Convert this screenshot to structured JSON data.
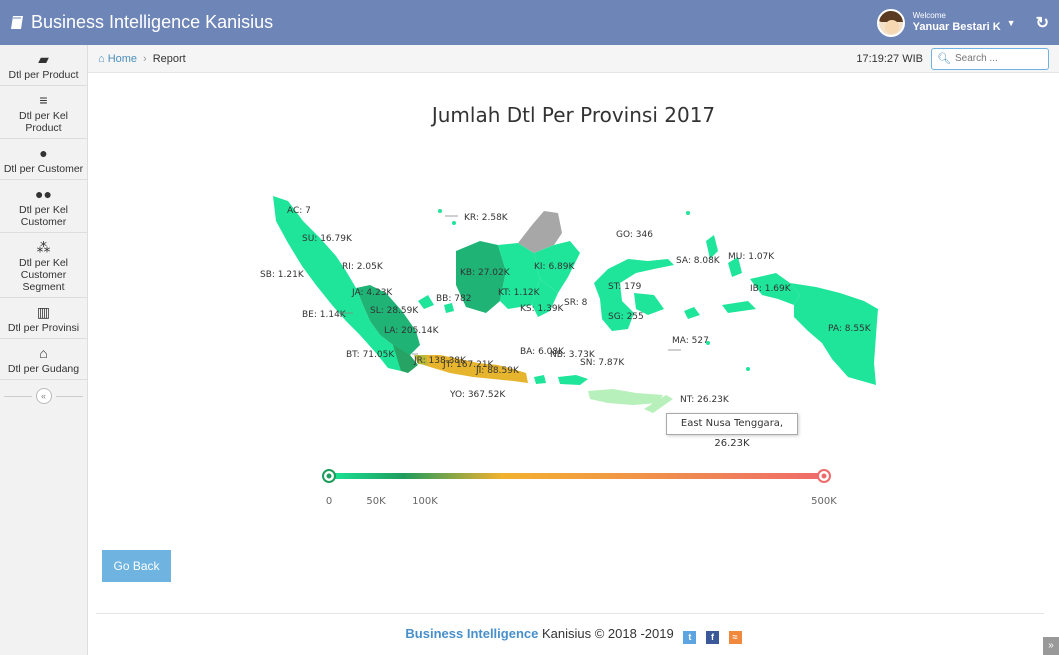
{
  "app": {
    "title": "Business Intelligence Kanisius",
    "welcome_small": "Welcome",
    "user_name": "Yanuar Bestari K"
  },
  "sidebar": {
    "items": [
      {
        "label": "Dtl per Product",
        "icon": "book-icon"
      },
      {
        "label": "Dtl per Kel Product",
        "icon": "list-icon"
      },
      {
        "label": "Dtl per Customer",
        "icon": "user-icon"
      },
      {
        "label": "Dtl per Kel Customer",
        "icon": "users-icon"
      },
      {
        "label": "Dtl per Kel Customer Segment",
        "icon": "sitemap-icon"
      },
      {
        "label": "Dtl per Provinsi",
        "icon": "map-icon"
      },
      {
        "label": "Dtl per Gudang",
        "icon": "home-icon"
      }
    ]
  },
  "breadcrumb": {
    "home": "Home",
    "current": "Report"
  },
  "time": "17:19:27 WIB",
  "search": {
    "placeholder": "Search ..."
  },
  "chart_data": {
    "type": "map",
    "title": "Jumlah Dtl Per Provinsi 2017",
    "regions": [
      {
        "code": "AC",
        "value_label": "AC: 7",
        "value": 7
      },
      {
        "code": "SU",
        "value_label": "SU: 16.79K",
        "value": 16790
      },
      {
        "code": "SB",
        "value_label": "SB: 1.21K",
        "value": 1210
      },
      {
        "code": "RI",
        "value_label": "RI: 2.05K",
        "value": 2050
      },
      {
        "code": "JA",
        "value_label": "JA: 4.23K",
        "value": 4230
      },
      {
        "code": "BE",
        "value_label": "BE: 1.14K",
        "value": 1140
      },
      {
        "code": "SL",
        "value_label": "SL: 28.59K",
        "value": 28590
      },
      {
        "code": "LA",
        "value_label": "LA: 205.14K",
        "value": 205140
      },
      {
        "code": "BB",
        "value_label": "BB: 782",
        "value": 782
      },
      {
        "code": "KR",
        "value_label": "KR: 2.58K",
        "value": 2580
      },
      {
        "code": "KB",
        "value_label": "KB: 27.02K",
        "value": 27020
      },
      {
        "code": "KI",
        "value_label": "KI: 6.89K",
        "value": 6890
      },
      {
        "code": "KT",
        "value_label": "KT: 1.12K",
        "value": 1120
      },
      {
        "code": "KS",
        "value_label": "KS: 1.39K",
        "value": 1390
      },
      {
        "code": "SR",
        "value_label": "SR: 8",
        "value": 8
      },
      {
        "code": "GO",
        "value_label": "GO: 346",
        "value": 346
      },
      {
        "code": "ST",
        "value_label": "ST: 179",
        "value": 179
      },
      {
        "code": "SG",
        "value_label": "SG: 255",
        "value": 255
      },
      {
        "code": "SA",
        "value_label": "SA: 8.08K",
        "value": 8080
      },
      {
        "code": "MU",
        "value_label": "MU: 1.07K",
        "value": 1070
      },
      {
        "code": "IB",
        "value_label": "IB: 1.69K",
        "value": 1690
      },
      {
        "code": "PA",
        "value_label": "PA: 8.55K",
        "value": 8550
      },
      {
        "code": "MA",
        "value_label": "MA: 527",
        "value": 527
      },
      {
        "code": "BT",
        "value_label": "BT: 71.05K",
        "value": 71050
      },
      {
        "code": "JR",
        "value_label": "JR: 138.38K",
        "value": 138380
      },
      {
        "code": "JT",
        "value_label": "JT: 167.21K",
        "value": 167210
      },
      {
        "code": "JI",
        "value_label": "JI: 88.59K",
        "value": 88590
      },
      {
        "code": "YO",
        "value_label": "YO: 367.52K",
        "value": 367520
      },
      {
        "code": "BA",
        "value_label": "BA: 6.08K",
        "value": 6080
      },
      {
        "code": "NB",
        "value_label": "NB: 3.73K",
        "value": 3730
      },
      {
        "code": "SN",
        "value_label": "SN: 7.87K",
        "value": 7870
      },
      {
        "code": "NT",
        "value_label": "NT: 26.23K",
        "value": 26230
      }
    ],
    "tooltip": "East Nusa Tenggara, 26.23K",
    "color_scale": {
      "min": 0,
      "max": 500000,
      "ticks": [
        "0",
        "50K",
        "100K",
        "500K"
      ],
      "colors": [
        "#19e697",
        "#1f9c5e",
        "#f2b12e",
        "#ef6b6b"
      ]
    },
    "no_data_color": "#a7a7a7"
  },
  "buttons": {
    "go_back": "Go Back"
  },
  "footer": {
    "brand": "Business Intelligence",
    "text": " Kanisius © 2018 -2019"
  },
  "colors": {
    "navbar": "#6e85b7",
    "accent": "#478fca"
  }
}
